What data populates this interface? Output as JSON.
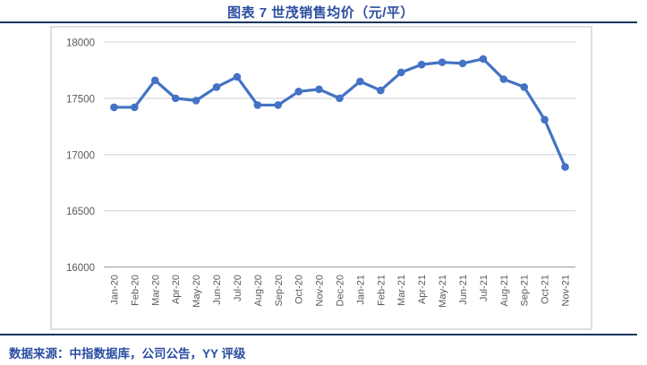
{
  "title": "图表 7 世茂销售均价（元/平）",
  "footer": {
    "source_text": "数据来源：中指数据库，公司公告，YY 评级"
  },
  "colors": {
    "accent_blue": "#2B4EA0",
    "rule_navy": "#17365D",
    "line_blue": "#4472C4",
    "grid_gray": "#D9D9D9",
    "axis_line_gray": "#A6A6A6",
    "axis_label_gray": "#595959"
  },
  "chart_data": {
    "type": "line",
    "title": "图表 7 世茂销售均价（元/平）",
    "categories": [
      "Jan-20",
      "Feb-20",
      "Mar-20",
      "Apr-20",
      "May-20",
      "Jun-20",
      "Jul-20",
      "Aug-20",
      "Sep-20",
      "Oct-20",
      "Nov-20",
      "Dec-20",
      "Jan-21",
      "Feb-21",
      "Mar-21",
      "Apr-21",
      "May-21",
      "Jun-21",
      "Jul-21",
      "Aug-21",
      "Sep-21",
      "Oct-21",
      "Nov-21"
    ],
    "values": [
      17420,
      17420,
      17660,
      17500,
      17480,
      17600,
      17690,
      17440,
      17440,
      17560,
      17580,
      17500,
      17650,
      17570,
      17730,
      17800,
      17820,
      17810,
      17850,
      17670,
      17600,
      17310,
      16890
    ],
    "xlabel": "",
    "ylabel": "",
    "ylim": [
      16000,
      18000
    ],
    "yticks": [
      16000,
      16500,
      17000,
      17500,
      18000
    ],
    "grid": true,
    "legend": "none",
    "marker": "circle"
  }
}
